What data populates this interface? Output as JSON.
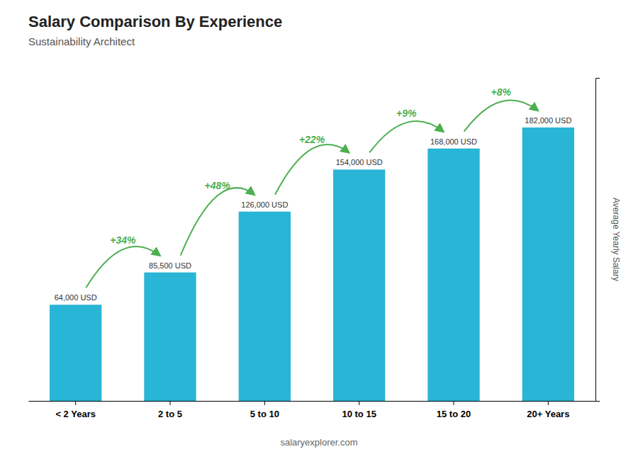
{
  "chart_data": {
    "type": "bar",
    "title": "Salary Comparison By Experience",
    "subtitle": "Sustainability Architect",
    "y_label": "Average Yearly Salary",
    "categories": [
      "< 2 Years",
      "2 to 5",
      "5 to 10",
      "10 to 15",
      "15 to 20",
      "20+ Years"
    ],
    "values": [
      64000,
      85500,
      126000,
      154000,
      168000,
      182000
    ],
    "value_labels": [
      "64,000 USD",
      "85,500 USD",
      "126,000 USD",
      "154,000 USD",
      "168,000 USD",
      "182,000 USD"
    ],
    "data_labels": true,
    "color": "#29B5D5",
    "ylim": [
      0,
      215000
    ],
    "yticks": [],
    "tick_labels": "x",
    "grid": false,
    "annotations": [
      "+34%",
      "+48%",
      "+22%",
      "+9%",
      "+8%"
    ],
    "footer": "salaryexplorer.com"
  }
}
